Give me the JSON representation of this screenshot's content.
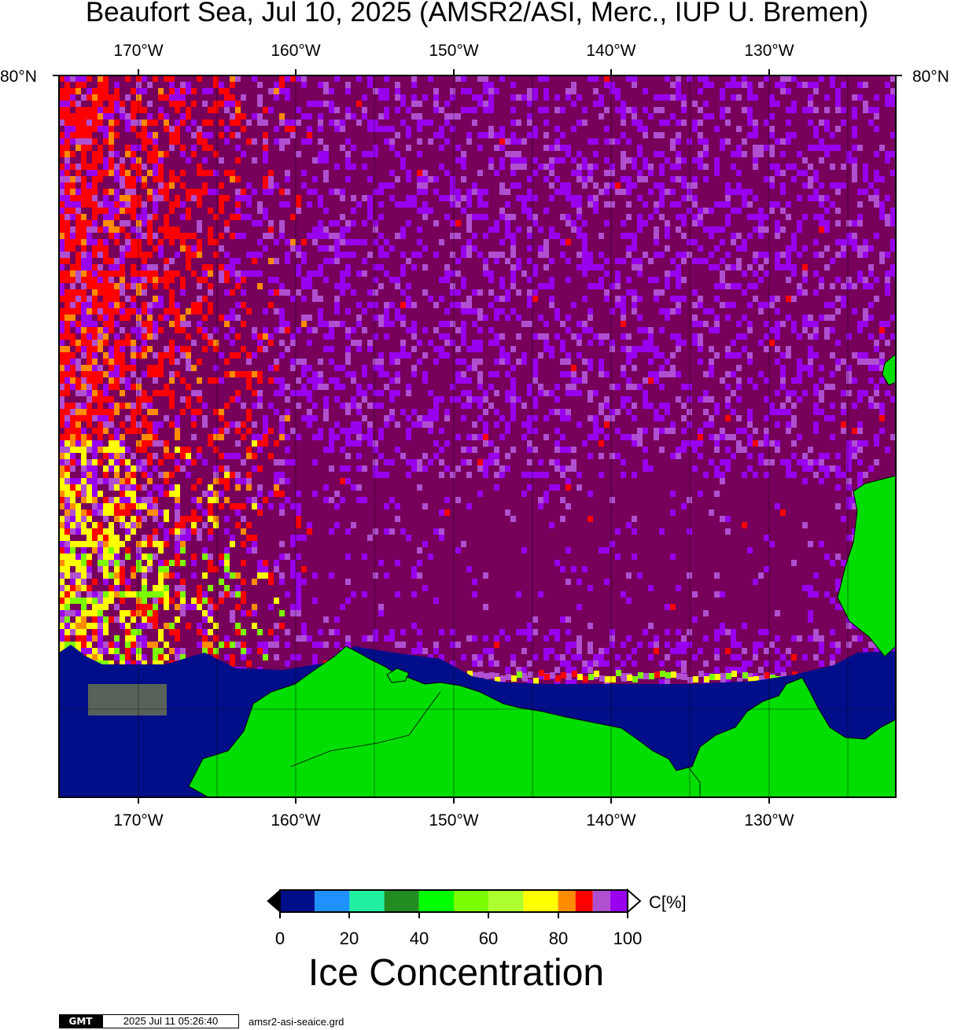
{
  "title": "Beaufort Sea, Jul 10, 2025 (AMSR2/ASI, Merc., IUP U. Bremen)",
  "map": {
    "longitude_labels": [
      "170°W",
      "160°W",
      "150°W",
      "140°W",
      "130°W"
    ],
    "longitudes": [
      -170,
      -160,
      -150,
      -140,
      -130
    ],
    "latitude_label": "80°N",
    "colors": {
      "land": "#00dd00",
      "open_water": "#000e8a",
      "ice_100": "#76005a"
    }
  },
  "colorbar": {
    "unit_label": "C[%]",
    "tick_labels": [
      "0",
      "20",
      "40",
      "60",
      "80",
      "100"
    ],
    "range": [
      0,
      100
    ],
    "bins": [
      {
        "from": 0,
        "to": 10,
        "color": "#000e8a"
      },
      {
        "from": 10,
        "to": 20,
        "color": "#1e90ff"
      },
      {
        "from": 20,
        "to": 30,
        "color": "#20f0a0"
      },
      {
        "from": 30,
        "to": 40,
        "color": "#228b22"
      },
      {
        "from": 40,
        "to": 50,
        "color": "#00ff00"
      },
      {
        "from": 50,
        "to": 60,
        "color": "#7cfc00"
      },
      {
        "from": 60,
        "to": 70,
        "color": "#adff2f"
      },
      {
        "from": 70,
        "to": 80,
        "color": "#ffff00"
      },
      {
        "from": 80,
        "to": 85,
        "color": "#ff8c00"
      },
      {
        "from": 85,
        "to": 90,
        "color": "#ff0000"
      },
      {
        "from": 90,
        "to": 95,
        "color": "#b050d0"
      },
      {
        "from": 95,
        "to": 100,
        "color": "#9900ee"
      }
    ],
    "title": "Ice Concentration"
  },
  "footer": {
    "logo": "GMT",
    "timestamp": "2025 Jul 11 05:26:40",
    "filename": "amsr2-asi-seaice.grd"
  }
}
